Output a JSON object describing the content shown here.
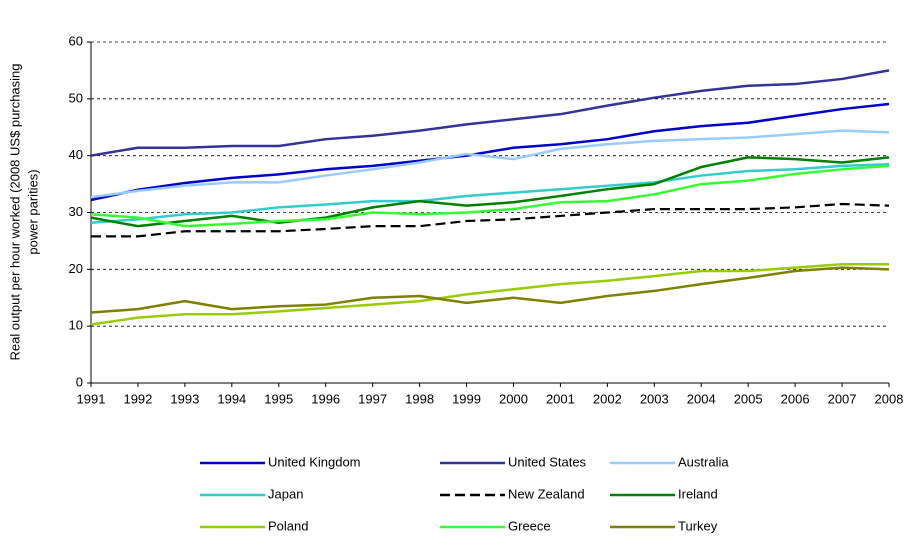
{
  "chart_data": {
    "type": "line",
    "ylabel": [
      "Real output per hour worked (2008 US$ purchasing",
      "power parities)"
    ],
    "categories": [
      "1991",
      "1992",
      "1993",
      "1994",
      "1995",
      "1996",
      "1997",
      "1998",
      "1999",
      "2000",
      "2001",
      "2002",
      "2003",
      "2004",
      "2005",
      "2006",
      "2007",
      "2008"
    ],
    "ylim": [
      0,
      60
    ],
    "yticks": [
      0,
      10,
      20,
      30,
      40,
      50,
      60
    ],
    "grid": true,
    "series": [
      {
        "name": "United Kingdom",
        "color": "#0000cc",
        "values": [
          32.2,
          34,
          35.2,
          36.1,
          36.7,
          37.6,
          38.2,
          39.1,
          40,
          41.4,
          42,
          42.9,
          44.3,
          45.2,
          45.8,
          47,
          48.2,
          49.1
        ]
      },
      {
        "name": "United States",
        "color": "#333399",
        "values": [
          40,
          41.4,
          41.4,
          41.7,
          41.7,
          42.9,
          43.5,
          44.4,
          45.5,
          46.4,
          47.3,
          48.8,
          50.2,
          51.4,
          52.3,
          52.6,
          53.5,
          55
        ]
      },
      {
        "name": "Australia",
        "color": "#99ccff",
        "values": [
          32.7,
          33.8,
          34.7,
          35.3,
          35.3,
          36.5,
          37.6,
          38.8,
          40.3,
          39.4,
          41.2,
          42,
          42.6,
          42.9,
          43.2,
          43.8,
          44.4,
          44.1
        ]
      },
      {
        "name": "Japan",
        "color": "#33cccc",
        "values": [
          28.2,
          28.8,
          29.7,
          30,
          30.9,
          31.4,
          32,
          32,
          32.9,
          33.5,
          34.1,
          34.7,
          35.3,
          36.5,
          37.3,
          37.6,
          38.2,
          38.5
        ]
      },
      {
        "name": "New Zealand",
        "color": "#000000",
        "dashed": true,
        "values": [
          25.8,
          25.8,
          26.7,
          26.7,
          26.7,
          27.1,
          27.6,
          27.6,
          28.5,
          28.8,
          29.4,
          30,
          30.6,
          30.6,
          30.6,
          30.9,
          31.5,
          31.2
        ]
      },
      {
        "name": "Ireland",
        "color": "#008000",
        "values": [
          29.1,
          27.6,
          28.5,
          29.4,
          28.2,
          29.1,
          30.9,
          32,
          31.2,
          31.8,
          32.9,
          34.1,
          35,
          38,
          39.7,
          39.4,
          38.8,
          39.7
        ]
      },
      {
        "name": "Poland",
        "color": "#99cc00",
        "values": [
          10.3,
          11.5,
          12.1,
          12.1,
          12.6,
          13.2,
          13.8,
          14.4,
          15.6,
          16.5,
          17.4,
          18,
          18.8,
          19.7,
          19.7,
          20.3,
          20.9,
          20.9
        ]
      },
      {
        "name": "Greece",
        "color": "#33ff33",
        "values": [
          29.7,
          29.1,
          27.6,
          28,
          28.5,
          28.8,
          30,
          29.7,
          30,
          30.6,
          31.8,
          32,
          33.2,
          35,
          35.6,
          36.8,
          37.6,
          38.2
        ]
      },
      {
        "name": "Turkey",
        "color": "#808000",
        "values": [
          12.4,
          13,
          14.4,
          13,
          13.5,
          13.8,
          15,
          15.3,
          14.1,
          15,
          14.1,
          15.3,
          16.2,
          17.4,
          18.5,
          19.7,
          20.3,
          20
        ]
      }
    ]
  }
}
